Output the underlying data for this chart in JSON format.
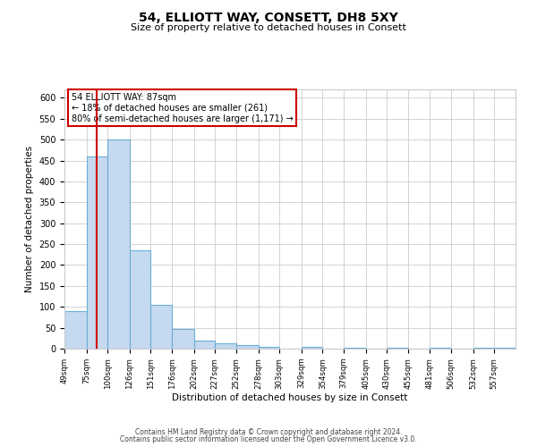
{
  "title": "54, ELLIOTT WAY, CONSETT, DH8 5XY",
  "subtitle": "Size of property relative to detached houses in Consett",
  "xlabel": "Distribution of detached houses by size in Consett",
  "ylabel": "Number of detached properties",
  "bin_labels": [
    "49sqm",
    "75sqm",
    "100sqm",
    "126sqm",
    "151sqm",
    "176sqm",
    "202sqm",
    "227sqm",
    "252sqm",
    "278sqm",
    "303sqm",
    "329sqm",
    "354sqm",
    "379sqm",
    "405sqm",
    "430sqm",
    "455sqm",
    "481sqm",
    "506sqm",
    "532sqm",
    "557sqm"
  ],
  "bin_edges": [
    49,
    75,
    100,
    126,
    151,
    176,
    202,
    227,
    252,
    278,
    303,
    329,
    354,
    379,
    405,
    430,
    455,
    481,
    506,
    532,
    557
  ],
  "bar_heights": [
    90,
    460,
    500,
    235,
    105,
    47,
    20,
    12,
    8,
    5,
    0,
    5,
    0,
    3,
    0,
    2,
    0,
    2,
    0,
    2,
    2
  ],
  "bar_color": "#c5d9ef",
  "bar_edgecolor": "#6baed6",
  "property_size": 87,
  "vline_color": "#cc0000",
  "annotation_text": "54 ELLIOTT WAY: 87sqm\n← 18% of detached houses are smaller (261)\n80% of semi-detached houses are larger (1,171) →",
  "annotation_box_color": "#ffffff",
  "annotation_box_edgecolor": "#cc0000",
  "ylim": [
    0,
    620
  ],
  "yticks": [
    0,
    50,
    100,
    150,
    200,
    250,
    300,
    350,
    400,
    450,
    500,
    550,
    600
  ],
  "grid_color": "#cccccc",
  "background_color": "#ffffff",
  "footer_line1": "Contains HM Land Registry data © Crown copyright and database right 2024.",
  "footer_line2": "Contains public sector information licensed under the Open Government Licence v3.0."
}
